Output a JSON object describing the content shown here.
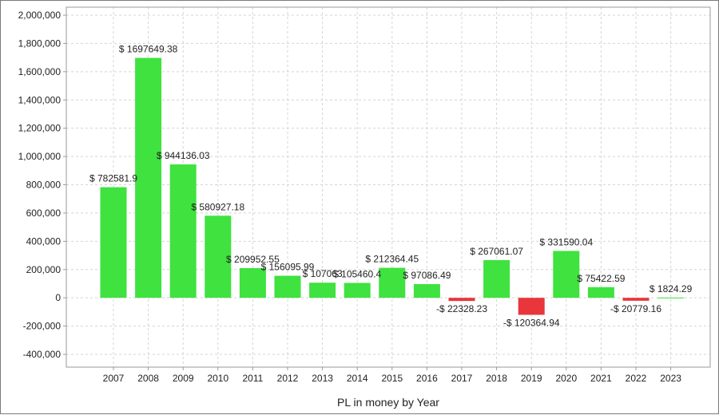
{
  "chart_data": {
    "type": "bar",
    "xlabel": "PL in money by Year",
    "ylabel": "",
    "ylim": [
      -400000,
      2000000
    ],
    "yticks": [
      -400000,
      -200000,
      0,
      200000,
      400000,
      600000,
      800000,
      1000000,
      1200000,
      1400000,
      1600000,
      1800000,
      2000000
    ],
    "ytick_labels": [
      "-400,000",
      "-200,000",
      "0",
      "200,000",
      "400,000",
      "600,000",
      "800,000",
      "1,000,000",
      "1,200,000",
      "1,400,000",
      "1,600,000",
      "1,800,000",
      "2,000,000"
    ],
    "grid": true,
    "legend": "none",
    "categories": [
      "2007",
      "2008",
      "2009",
      "2010",
      "2011",
      "2012",
      "2013",
      "2014",
      "2015",
      "2016",
      "2017",
      "2018",
      "2019",
      "2020",
      "2021",
      "2022",
      "2023"
    ],
    "values": [
      782581.9,
      1697649.38,
      944136.03,
      580927.18,
      209952.55,
      156095.99,
      107063.0,
      105460.4,
      212364.45,
      97086.49,
      -22328.23,
      267061.07,
      -120364.94,
      331590.04,
      75422.59,
      -20779.16,
      1824.29
    ],
    "value_labels": [
      "$ 782581.9",
      "$ 1697649.38",
      "$ 944136.03",
      "$ 580927.18",
      "$ 209952.55",
      "$ 156095.99",
      "$ 107063",
      "$ 105460.4",
      "$ 212364.45",
      "$ 97086.49",
      "-$ 22328.23",
      "$ 267061.07",
      "-$ 120364.94",
      "$ 331590.04",
      "$ 75422.59",
      "-$ 20779.16",
      "$ 1824.29"
    ],
    "colors": {
      "positive": "#3fe23f",
      "negative": "#e8363b",
      "grid": "#d4d4d4",
      "axis": "#9a9a9a"
    }
  }
}
